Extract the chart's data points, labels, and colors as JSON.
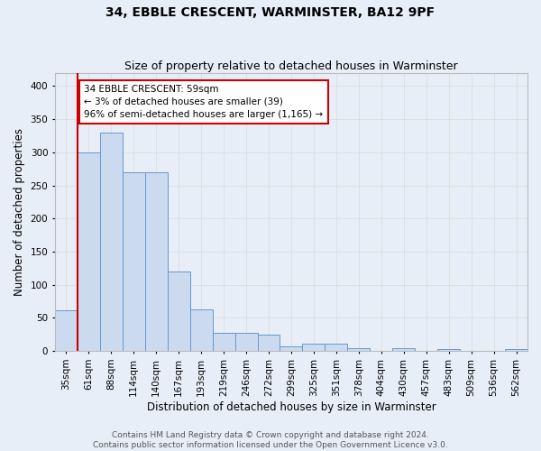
{
  "title": "34, EBBLE CRESCENT, WARMINSTER, BA12 9PF",
  "subtitle": "Size of property relative to detached houses in Warminster",
  "xlabel": "Distribution of detached houses by size in Warminster",
  "ylabel": "Number of detached properties",
  "bar_labels": [
    "35sqm",
    "61sqm",
    "88sqm",
    "114sqm",
    "140sqm",
    "167sqm",
    "193sqm",
    "219sqm",
    "246sqm",
    "272sqm",
    "299sqm",
    "325sqm",
    "351sqm",
    "378sqm",
    "404sqm",
    "430sqm",
    "457sqm",
    "483sqm",
    "509sqm",
    "536sqm",
    "562sqm"
  ],
  "bar_values": [
    62,
    300,
    330,
    270,
    270,
    120,
    63,
    28,
    28,
    25,
    7,
    11,
    11,
    5,
    0,
    4,
    0,
    3,
    0,
    0,
    3
  ],
  "bar_color": "#ccdaf0",
  "bar_edge_color": "#6699cc",
  "property_line_color": "#cc0000",
  "annotation_text": "34 EBBLE CRESCENT: 59sqm\n← 3% of detached houses are smaller (39)\n96% of semi-detached houses are larger (1,165) →",
  "annotation_box_facecolor": "#ffffff",
  "annotation_box_edgecolor": "#cc0000",
  "ylim": [
    0,
    420
  ],
  "yticks": [
    0,
    50,
    100,
    150,
    200,
    250,
    300,
    350,
    400
  ],
  "grid_color": "#dddddd",
  "background_color": "#e8eef8",
  "title_fontsize": 10,
  "subtitle_fontsize": 9,
  "xlabel_fontsize": 8.5,
  "ylabel_fontsize": 8.5,
  "tick_fontsize": 7.5,
  "annotation_fontsize": 7.5,
  "footer_fontsize": 6.5,
  "footer_line1": "Contains HM Land Registry data © Crown copyright and database right 2024.",
  "footer_line2": "Contains public sector information licensed under the Open Government Licence v3.0."
}
